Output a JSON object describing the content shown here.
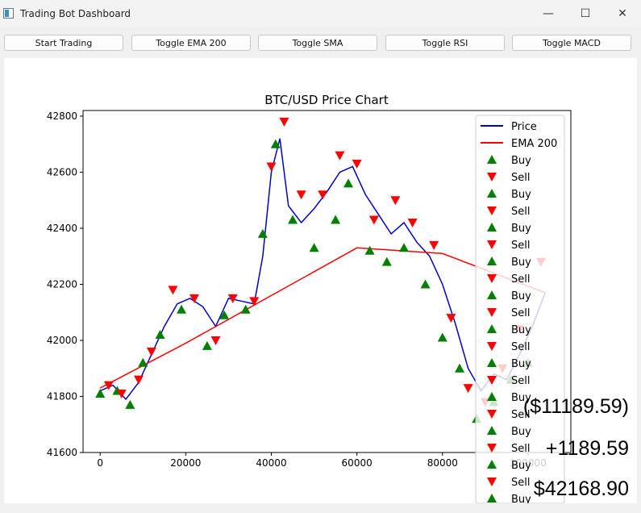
{
  "window": {
    "title": "Trading Bot Dashboard",
    "icon": "app-window-icon"
  },
  "controls": {
    "minimize": "—",
    "maximize": "☐",
    "close": "✕"
  },
  "toolbar": {
    "buttons": [
      {
        "label": "Start Trading"
      },
      {
        "label": "Toggle EMA 200"
      },
      {
        "label": "Toggle SMA"
      },
      {
        "label": "Toggle RSI"
      },
      {
        "label": "Toggle MACD"
      }
    ]
  },
  "stats": {
    "balance_change": "($11189.59)",
    "profit": "+1189.59",
    "price": "$42168.90"
  },
  "colors": {
    "price_line": "#0000cc",
    "ema_line": "#ff0000",
    "buy_marker": "#008000",
    "sell_marker": "#ff0000"
  },
  "chart_data": {
    "type": "line",
    "title": "BTC/USD Price Chart",
    "xlabel": "",
    "ylabel": "",
    "x_ticks": [
      "0",
      "20000",
      "40000",
      "60000",
      "80000",
      "100000"
    ],
    "y_ticks": [
      "41600",
      "41800",
      "42000",
      "42200",
      "42400",
      "42600",
      "42800"
    ],
    "xlim": [
      -4000,
      110000
    ],
    "ylim": [
      41600,
      42820
    ],
    "grid": false,
    "legend_position": "top-right",
    "legend": [
      "Price",
      "EMA 200",
      "Buy",
      "Sell",
      "Buy",
      "Sell",
      "Buy",
      "Sell",
      "Buy",
      "Sell",
      "Buy",
      "Sell",
      "Buy",
      "Sell",
      "Buy",
      "Sell",
      "Buy",
      "Sell",
      "Buy",
      "Sell",
      "Buy",
      "Sell",
      "Buy"
    ],
    "series": [
      {
        "name": "Price",
        "x": [
          0,
          3000,
          6000,
          9000,
          12000,
          15000,
          18000,
          21000,
          24000,
          27000,
          30000,
          33000,
          36000,
          38000,
          40000,
          42000,
          44000,
          47000,
          50000,
          53000,
          56000,
          59000,
          62000,
          65000,
          68000,
          71000,
          74000,
          77000,
          80000,
          83000,
          86000,
          89000,
          92000,
          95000,
          98000,
          101000,
          104000
        ],
        "y": [
          41820,
          41840,
          41790,
          41850,
          41950,
          42050,
          42130,
          42150,
          42120,
          42050,
          42150,
          42140,
          42130,
          42300,
          42600,
          42720,
          42480,
          42420,
          42470,
          42530,
          42600,
          42620,
          42520,
          42450,
          42380,
          42420,
          42350,
          42300,
          42200,
          42060,
          41900,
          41820,
          41880,
          41860,
          41950,
          42050,
          42170
        ]
      },
      {
        "name": "EMA 200",
        "x": [
          0,
          20000,
          40000,
          60000,
          80000,
          104000
        ],
        "y": [
          41830,
          41990,
          42160,
          42330,
          42310,
          42170
        ]
      }
    ],
    "buy": {
      "x": [
        0,
        4000,
        7000,
        10000,
        14000,
        19000,
        25000,
        29000,
        34000,
        38000,
        41000,
        45000,
        50000,
        55000,
        58000,
        63000,
        67000,
        71000,
        76000,
        80000,
        84000,
        88000,
        92000,
        96000,
        100000
      ],
      "y": [
        41810,
        41820,
        41770,
        41920,
        42020,
        42110,
        41980,
        42090,
        42110,
        42380,
        42700,
        42430,
        42330,
        42430,
        42560,
        42320,
        42280,
        42330,
        42200,
        42010,
        41900,
        41720,
        41780,
        41860,
        41920
      ]
    },
    "sell": {
      "x": [
        2000,
        5000,
        9000,
        12000,
        17000,
        22000,
        27000,
        31000,
        36000,
        40000,
        43000,
        47000,
        52000,
        56000,
        60000,
        64000,
        69000,
        73000,
        78000,
        82000,
        86000,
        90000,
        94000,
        98000,
        103000
      ],
      "y": [
        41840,
        41810,
        41860,
        41960,
        42180,
        42150,
        42000,
        42150,
        42140,
        42620,
        42780,
        42520,
        42520,
        42660,
        42630,
        42430,
        42500,
        42420,
        42340,
        42080,
        41830,
        41780,
        41900,
        42040,
        42280
      ]
    }
  }
}
